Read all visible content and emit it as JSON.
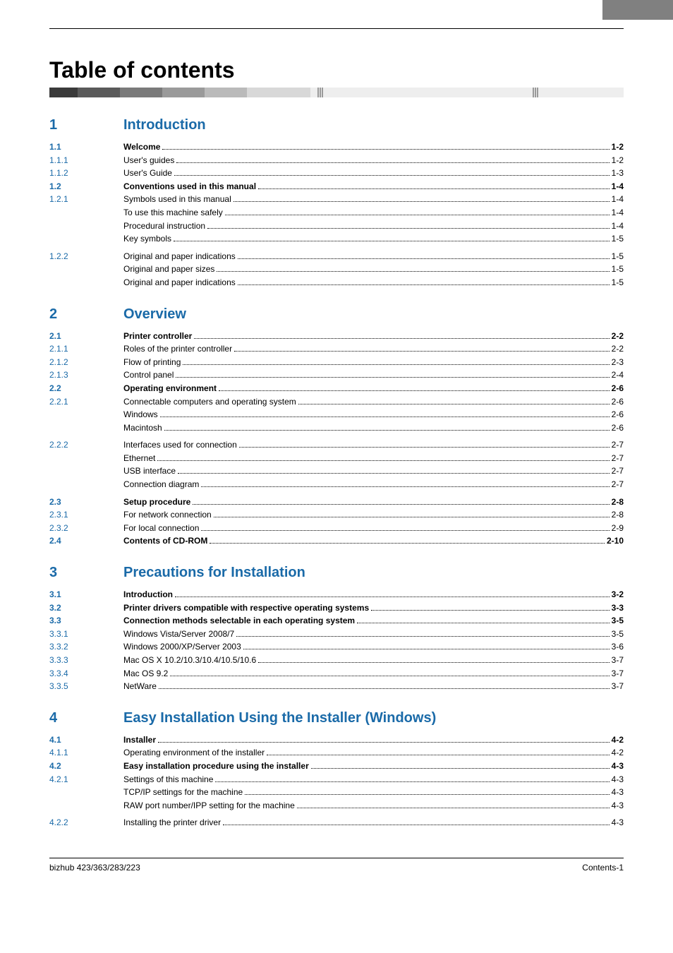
{
  "title": "Table of contents",
  "footer": {
    "left": "bizhub 423/363/283/223",
    "right": "Contents-1"
  },
  "chapters": [
    {
      "num": "1",
      "title": "Introduction",
      "rows": [
        {
          "n": "1.1",
          "t": "Welcome",
          "p": "1-2",
          "bold": true
        },
        {
          "n": "1.1.1",
          "t": "User's guides",
          "p": "1-2"
        },
        {
          "n": "1.1.2",
          "t": "User's Guide",
          "p": "1-3"
        },
        {
          "n": "1.2",
          "t": "Conventions used in this manual",
          "p": "1-4",
          "bold": true
        },
        {
          "n": "1.2.1",
          "t": "Symbols used in this manual",
          "p": "1-4"
        },
        {
          "indent": true,
          "t": "To use this machine safely",
          "p": "1-4"
        },
        {
          "indent": true,
          "t": "Procedural instruction",
          "p": "1-4"
        },
        {
          "indent": true,
          "t": "Key symbols",
          "p": "1-5"
        },
        {
          "gap": true
        },
        {
          "n": "1.2.2",
          "t": "Original and paper indications",
          "p": "1-5"
        },
        {
          "indent": true,
          "t": "Original and paper sizes",
          "p": "1-5"
        },
        {
          "indent": true,
          "t": "Original and paper indications",
          "p": "1-5"
        }
      ]
    },
    {
      "num": "2",
      "title": "Overview",
      "rows": [
        {
          "n": "2.1",
          "t": "Printer controller",
          "p": "2-2",
          "bold": true
        },
        {
          "n": "2.1.1",
          "t": "Roles of the printer controller",
          "p": "2-2"
        },
        {
          "n": "2.1.2",
          "t": "Flow of printing",
          "p": "2-3"
        },
        {
          "n": "2.1.3",
          "t": "Control panel",
          "p": "2-4"
        },
        {
          "n": "2.2",
          "t": "Operating environment",
          "p": "2-6",
          "bold": true
        },
        {
          "n": "2.2.1",
          "t": "Connectable computers and operating system",
          "p": "2-6"
        },
        {
          "indent": true,
          "t": "Windows",
          "p": "2-6"
        },
        {
          "indent": true,
          "t": "Macintosh",
          "p": "2-6"
        },
        {
          "gap": true
        },
        {
          "n": "2.2.2",
          "t": "Interfaces used for connection",
          "p": "2-7"
        },
        {
          "indent": true,
          "t": "Ethernet",
          "p": "2-7"
        },
        {
          "indent": true,
          "t": "USB interface",
          "p": "2-7"
        },
        {
          "indent": true,
          "t": "Connection diagram",
          "p": "2-7"
        },
        {
          "gap": true
        },
        {
          "n": "2.3",
          "t": "Setup procedure",
          "p": "2-8",
          "bold": true
        },
        {
          "n": "2.3.1",
          "t": "For network connection",
          "p": "2-8"
        },
        {
          "n": "2.3.2",
          "t": "For local connection",
          "p": "2-9"
        },
        {
          "n": "2.4",
          "t": "Contents of CD-ROM",
          "p": "2-10",
          "bold": true
        }
      ]
    },
    {
      "num": "3",
      "title": "Precautions for Installation",
      "rows": [
        {
          "n": "3.1",
          "t": "Introduction",
          "p": "3-2",
          "bold": true
        },
        {
          "n": "3.2",
          "t": "Printer drivers compatible with respective operating systems",
          "p": "3-3",
          "bold": true
        },
        {
          "n": "3.3",
          "t": "Connection methods selectable in each operating system",
          "p": "3-5",
          "bold": true
        },
        {
          "n": "3.3.1",
          "t": "Windows Vista/Server 2008/7",
          "p": "3-5"
        },
        {
          "n": "3.3.2",
          "t": "Windows 2000/XP/Server 2003",
          "p": "3-6"
        },
        {
          "n": "3.3.3",
          "t": "Mac OS X 10.2/10.3/10.4/10.5/10.6",
          "p": "3-7"
        },
        {
          "n": "3.3.4",
          "t": "Mac OS 9.2",
          "p": "3-7"
        },
        {
          "n": "3.3.5",
          "t": "NetWare",
          "p": "3-7"
        }
      ]
    },
    {
      "num": "4",
      "title": "Easy Installation Using the Installer (Windows)",
      "rows": [
        {
          "n": "4.1",
          "t": "Installer",
          "p": "4-2",
          "bold": true
        },
        {
          "n": "4.1.1",
          "t": "Operating environment of the installer",
          "p": "4-2"
        },
        {
          "n": "4.2",
          "t": "Easy installation procedure using the installer",
          "p": "4-3",
          "bold": true
        },
        {
          "n": "4.2.1",
          "t": "Settings of this machine",
          "p": "4-3"
        },
        {
          "indent": true,
          "t": "TCP/IP settings for the machine",
          "p": "4-3"
        },
        {
          "indent": true,
          "t": "RAW port number/IPP setting for the machine",
          "p": "4-3"
        },
        {
          "gap": true
        },
        {
          "n": "4.2.2",
          "t": "Installing the printer driver",
          "p": "4-3"
        }
      ]
    }
  ]
}
